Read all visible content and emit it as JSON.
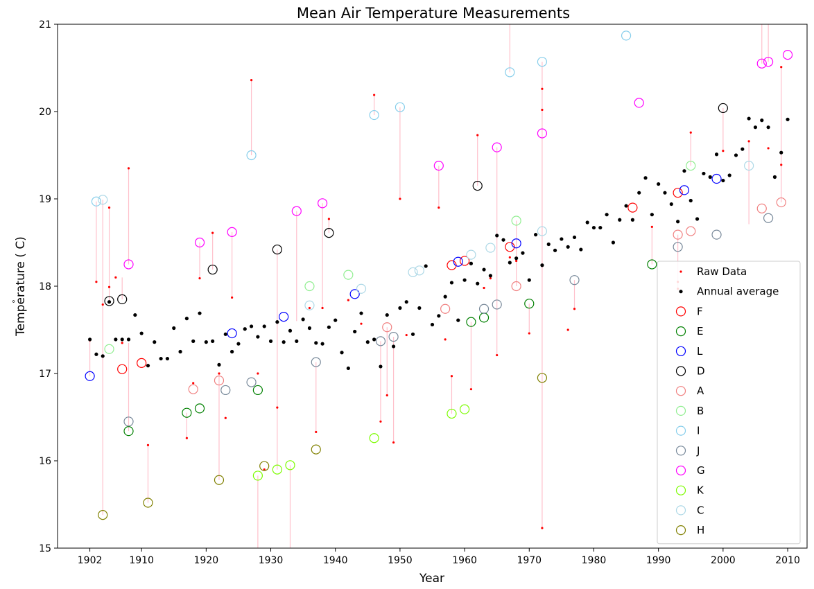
{
  "chart_data": {
    "type": "scatter",
    "title": "Mean Air Temperature Measurements",
    "xlabel": "Year",
    "ylabel": "Temperature ( C)",
    "ylabel_degree_mark": "°",
    "xlim": [
      1897,
      2013
    ],
    "ylim": [
      15,
      21
    ],
    "x_ticks": [
      1902,
      1910,
      1920,
      1930,
      1940,
      1950,
      1960,
      1970,
      1980,
      1990,
      2000,
      2010
    ],
    "y_ticks": [
      15,
      16,
      17,
      18,
      19,
      20,
      21
    ],
    "grid": false,
    "legend_position": "lower-right",
    "legend": [
      {
        "label": "Raw Data",
        "marker": "small-dot",
        "color": "#ff0000"
      },
      {
        "label": "Annual average",
        "marker": "dot",
        "color": "#000000"
      },
      {
        "label": "F",
        "marker": "circle",
        "color": "#ff0000"
      },
      {
        "label": "E",
        "marker": "circle",
        "color": "#008000"
      },
      {
        "label": "L",
        "marker": "circle",
        "color": "#0000ff"
      },
      {
        "label": "D",
        "marker": "circle",
        "color": "#000000"
      },
      {
        "label": "A",
        "marker": "circle",
        "color": "#f08080"
      },
      {
        "label": "B",
        "marker": "circle",
        "color": "#90ee90"
      },
      {
        "label": "I",
        "marker": "circle",
        "color": "#87ceeb"
      },
      {
        "label": "J",
        "marker": "circle",
        "color": "#778899"
      },
      {
        "label": "G",
        "marker": "circle",
        "color": "#ff00ff"
      },
      {
        "label": "K",
        "marker": "circle",
        "color": "#7cfc00"
      },
      {
        "label": "C",
        "marker": "circle",
        "color": "#add8e6"
      },
      {
        "label": "H",
        "marker": "circle",
        "color": "#808000"
      }
    ],
    "annual_average": {
      "x": [
        1902,
        1903,
        1904,
        1905,
        1906,
        1907,
        1908,
        1909,
        1910,
        1911,
        1912,
        1913,
        1914,
        1915,
        1916,
        1917,
        1918,
        1919,
        1920,
        1921,
        1922,
        1923,
        1924,
        1925,
        1926,
        1927,
        1928,
        1929,
        1930,
        1931,
        1932,
        1933,
        1934,
        1935,
        1936,
        1937,
        1938,
        1939,
        1940,
        1941,
        1942,
        1943,
        1944,
        1945,
        1946,
        1947,
        1948,
        1949,
        1950,
        1951,
        1952,
        1953,
        1954,
        1955,
        1956,
        1957,
        1958,
        1959,
        1960,
        1961,
        1962,
        1963,
        1964,
        1965,
        1966,
        1967,
        1968,
        1969,
        1970,
        1971,
        1972,
        1973,
        1974,
        1975,
        1976,
        1977,
        1978,
        1979,
        1980,
        1981,
        1982,
        1983,
        1984,
        1985,
        1986,
        1987,
        1988,
        1989,
        1990,
        1991,
        1992,
        1993,
        1994,
        1995,
        1996,
        1997,
        1998,
        1999,
        2000,
        2001,
        2002,
        2003,
        2004,
        2005,
        2006,
        2007,
        2008,
        2009,
        2010
      ],
      "y": [
        17.39,
        17.22,
        17.2,
        17.82,
        17.39,
        17.39,
        17.39,
        17.67,
        17.46,
        17.09,
        17.36,
        17.17,
        17.17,
        17.52,
        17.25,
        17.63,
        17.37,
        17.69,
        17.36,
        17.37,
        17.1,
        17.45,
        17.25,
        17.34,
        17.51,
        17.54,
        17.42,
        17.54,
        17.37,
        17.59,
        17.36,
        17.49,
        17.37,
        17.62,
        17.52,
        17.35,
        17.34,
        17.53,
        17.61,
        17.24,
        17.06,
        17.48,
        17.69,
        17.36,
        17.39,
        17.08,
        17.67,
        17.31,
        17.75,
        17.82,
        17.45,
        17.75,
        18.23,
        17.56,
        17.66,
        17.88,
        18.04,
        17.61,
        18.07,
        18.26,
        18.03,
        18.19,
        18.12,
        18.58,
        18.53,
        18.27,
        18.32,
        18.38,
        18.07,
        18.59,
        18.24,
        18.48,
        18.41,
        18.54,
        18.45,
        18.56,
        18.42,
        18.73,
        18.67,
        18.67,
        18.82,
        18.5,
        18.76,
        18.92,
        18.76,
        19.07,
        19.24,
        18.82,
        19.17,
        19.07,
        18.94,
        18.74,
        19.32,
        18.98,
        18.77,
        19.29,
        19.25,
        19.51,
        19.21,
        19.27,
        19.5,
        19.57,
        19.92,
        19.82,
        19.9,
        19.82,
        19.25,
        19.53,
        19.91
      ]
    },
    "raw_data": {
      "x": [
        1902,
        1903,
        1904,
        1905,
        1905,
        1906,
        1907,
        1908,
        1911,
        1917,
        1918,
        1919,
        1921,
        1922,
        1923,
        1924,
        1927,
        1928,
        1929,
        1931,
        1933,
        1936,
        1937,
        1938,
        1939,
        1942,
        1944,
        1946,
        1947,
        1948,
        1949,
        1950,
        1951,
        1956,
        1957,
        1958,
        1961,
        1962,
        1963,
        1964,
        1965,
        1967,
        1968,
        1970,
        1972,
        1972,
        1972,
        1976,
        1977,
        1989,
        1993,
        1993,
        1995,
        2000,
        2004,
        2007,
        2009,
        2009
      ],
      "y": [
        17.38,
        18.05,
        17.79,
        17.99,
        18.9,
        18.1,
        17.35,
        19.35,
        16.18,
        16.26,
        16.89,
        18.09,
        18.61,
        17.0,
        16.49,
        17.87,
        20.36,
        17.0,
        15.9,
        16.61,
        17.49,
        17.75,
        16.33,
        17.75,
        18.77,
        17.84,
        17.57,
        20.19,
        16.45,
        16.75,
        16.21,
        19.0,
        17.44,
        18.9,
        17.39,
        16.97,
        16.82,
        19.73,
        17.98,
        18.09,
        17.21,
        18.33,
        18.29,
        17.46,
        20.26,
        20.02,
        15.23,
        17.5,
        17.74,
        18.68,
        18.05,
        17.97,
        19.76,
        19.55,
        19.66,
        19.58,
        19.39,
        20.51
      ]
    },
    "series": [
      {
        "name": "F",
        "color": "#ff0000",
        "x": [
          1907,
          1910,
          1958,
          1960,
          1967,
          1986,
          1993
        ],
        "y": [
          17.05,
          17.12,
          18.24,
          18.29,
          18.45,
          18.9,
          19.07
        ]
      },
      {
        "name": "E",
        "color": "#008000",
        "x": [
          1908,
          1917,
          1919,
          1928,
          1961,
          1963,
          1970,
          1989
        ],
        "y": [
          16.34,
          16.55,
          16.6,
          16.81,
          17.59,
          17.64,
          17.8,
          18.25
        ]
      },
      {
        "name": "L",
        "color": "#0000ff",
        "x": [
          1902,
          1924,
          1932,
          1943,
          1959,
          1968,
          1994,
          1999
        ],
        "y": [
          16.97,
          17.46,
          17.65,
          17.91,
          18.28,
          18.49,
          19.1,
          19.23
        ]
      },
      {
        "name": "D",
        "color": "#000000",
        "x": [
          1905,
          1907,
          1921,
          1931,
          1939,
          1962,
          2000
        ],
        "y": [
          17.83,
          17.85,
          18.19,
          18.42,
          18.61,
          19.15,
          20.04
        ]
      },
      {
        "name": "A",
        "color": "#f08080",
        "x": [
          1918,
          1922,
          1948,
          1957,
          1968,
          1993,
          1995,
          2006,
          2009
        ],
        "y": [
          16.82,
          16.92,
          17.53,
          17.74,
          18.0,
          18.59,
          18.63,
          18.89,
          18.96
        ]
      },
      {
        "name": "B",
        "color": "#90ee90",
        "x": [
          1905,
          1936,
          1942,
          1968,
          1995
        ],
        "y": [
          17.28,
          18.0,
          18.13,
          18.75,
          19.38
        ]
      },
      {
        "name": "I",
        "color": "#87ceeb",
        "x": [
          1903,
          1927,
          1946,
          1950,
          1967,
          1972,
          1985
        ],
        "y": [
          18.97,
          19.5,
          19.96,
          20.05,
          20.45,
          20.57,
          20.87
        ]
      },
      {
        "name": "J",
        "color": "#778899",
        "x": [
          1908,
          1923,
          1927,
          1937,
          1947,
          1949,
          1963,
          1965,
          1977,
          1993,
          1999,
          2007
        ],
        "y": [
          16.45,
          16.81,
          16.9,
          17.13,
          17.37,
          17.42,
          17.74,
          17.79,
          18.07,
          18.45,
          18.59,
          18.78
        ]
      },
      {
        "name": "G",
        "color": "#ff00ff",
        "x": [
          1908,
          1919,
          1924,
          1934,
          1938,
          1956,
          1965,
          1972,
          1987,
          2006,
          2007,
          2010
        ],
        "y": [
          18.25,
          18.5,
          18.62,
          18.86,
          18.95,
          19.38,
          19.59,
          19.75,
          20.1,
          20.55,
          20.57,
          20.65
        ]
      },
      {
        "name": "K",
        "color": "#7cfc00",
        "x": [
          1928,
          1931,
          1933,
          1946,
          1958,
          1960
        ],
        "y": [
          15.83,
          15.9,
          15.95,
          16.26,
          16.54,
          16.59
        ]
      },
      {
        "name": "C",
        "color": "#add8e6",
        "x": [
          1904,
          1936,
          1944,
          1952,
          1953,
          1961,
          1964,
          1972,
          2004
        ],
        "y": [
          18.99,
          17.78,
          17.97,
          18.16,
          18.18,
          18.36,
          18.44,
          18.63,
          19.38
        ]
      },
      {
        "name": "H",
        "color": "#808000",
        "x": [
          1904,
          1911,
          1922,
          1929,
          1937,
          1972
        ],
        "y": [
          15.38,
          15.52,
          15.78,
          15.94,
          16.13,
          16.95
        ]
      }
    ],
    "connectors": [
      {
        "x": 1902,
        "y1": 16.97,
        "y2": 17.38
      },
      {
        "x": 1903,
        "y1": 18.97,
        "y2": 18.05
      },
      {
        "x": 1904,
        "y1": 18.99,
        "y2": 17.79
      },
      {
        "x": 1904,
        "y1": 15.38,
        "y2": 17.79
      },
      {
        "x": 1905,
        "y1": 17.83,
        "y2": 18.9
      },
      {
        "x": 1907,
        "y1": 17.85,
        "y2": 18.1
      },
      {
        "x": 1908,
        "y1": 18.25,
        "y2": 19.35
      },
      {
        "x": 1908,
        "y1": 16.34,
        "y2": 17.35
      },
      {
        "x": 1911,
        "y1": 15.52,
        "y2": 16.18
      },
      {
        "x": 1917,
        "y1": 16.55,
        "y2": 16.26
      },
      {
        "x": 1919,
        "y1": 18.5,
        "y2": 18.09
      },
      {
        "x": 1921,
        "y1": 18.19,
        "y2": 18.61
      },
      {
        "x": 1922,
        "y1": 15.78,
        "y2": 17.0
      },
      {
        "x": 1924,
        "y1": 18.62,
        "y2": 17.87
      },
      {
        "x": 1927,
        "y1": 19.5,
        "y2": 20.36
      },
      {
        "x": 1928,
        "y1": 15.83,
        "y2": 15.0
      },
      {
        "x": 1931,
        "y1": 15.9,
        "y2": 18.42
      },
      {
        "x": 1933,
        "y1": 15.95,
        "y2": 15.0
      },
      {
        "x": 1934,
        "y1": 18.86,
        "y2": 17.6
      },
      {
        "x": 1937,
        "y1": 17.13,
        "y2": 16.33
      },
      {
        "x": 1938,
        "y1": 18.95,
        "y2": 17.75
      },
      {
        "x": 1939,
        "y1": 18.61,
        "y2": 18.77
      },
      {
        "x": 1946,
        "y1": 19.96,
        "y2": 20.19
      },
      {
        "x": 1947,
        "y1": 17.37,
        "y2": 16.45
      },
      {
        "x": 1948,
        "y1": 17.53,
        "y2": 16.75
      },
      {
        "x": 1949,
        "y1": 17.42,
        "y2": 16.21
      },
      {
        "x": 1950,
        "y1": 20.05,
        "y2": 19.0
      },
      {
        "x": 1956,
        "y1": 19.38,
        "y2": 18.9
      },
      {
        "x": 1958,
        "y1": 16.54,
        "y2": 16.97
      },
      {
        "x": 1961,
        "y1": 17.59,
        "y2": 16.82
      },
      {
        "x": 1962,
        "y1": 19.15,
        "y2": 19.73
      },
      {
        "x": 1965,
        "y1": 19.59,
        "y2": 17.21
      },
      {
        "x": 1967,
        "y1": 20.45,
        "y2": 21.0
      },
      {
        "x": 1968,
        "y1": 18.0,
        "y2": 18.75
      },
      {
        "x": 1970,
        "y1": 17.8,
        "y2": 17.46
      },
      {
        "x": 1972,
        "y1": 20.57,
        "y2": 15.23
      },
      {
        "x": 1977,
        "y1": 18.07,
        "y2": 17.74
      },
      {
        "x": 1989,
        "y1": 18.25,
        "y2": 18.68
      },
      {
        "x": 1993,
        "y1": 18.59,
        "y2": 17.97
      },
      {
        "x": 1995,
        "y1": 19.38,
        "y2": 19.76
      },
      {
        "x": 2000,
        "y1": 20.04,
        "y2": 19.55
      },
      {
        "x": 2004,
        "y1": 18.71,
        "y2": 19.66
      },
      {
        "x": 2006,
        "y1": 20.55,
        "y2": 21.0
      },
      {
        "x": 2007,
        "y1": 20.57,
        "y2": 21.0
      },
      {
        "x": 2009,
        "y1": 18.96,
        "y2": 20.51
      }
    ],
    "connector_color": "#ffc0cb"
  }
}
